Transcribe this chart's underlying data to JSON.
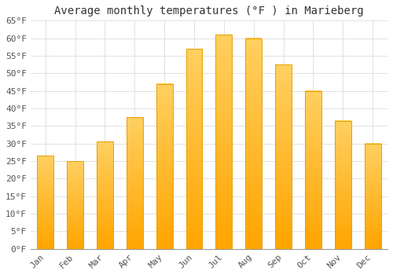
{
  "title": "Average monthly temperatures (°F ) in Marieberg",
  "months": [
    "Jan",
    "Feb",
    "Mar",
    "Apr",
    "May",
    "Jun",
    "Jul",
    "Aug",
    "Sep",
    "Oct",
    "Nov",
    "Dec"
  ],
  "values": [
    26.5,
    25.0,
    30.5,
    37.5,
    47.0,
    57.0,
    61.0,
    60.0,
    52.5,
    45.0,
    36.5,
    30.0
  ],
  "bar_color_bottom": "#FFA500",
  "bar_color_top": "#FFD060",
  "bar_edge_color": "#E8A000",
  "background_color": "#FFFFFF",
  "grid_color": "#DDDDDD",
  "ylim": [
    0,
    65
  ],
  "yticks": [
    0,
    5,
    10,
    15,
    20,
    25,
    30,
    35,
    40,
    45,
    50,
    55,
    60,
    65
  ],
  "title_fontsize": 10,
  "tick_fontsize": 8,
  "bar_width": 0.55
}
